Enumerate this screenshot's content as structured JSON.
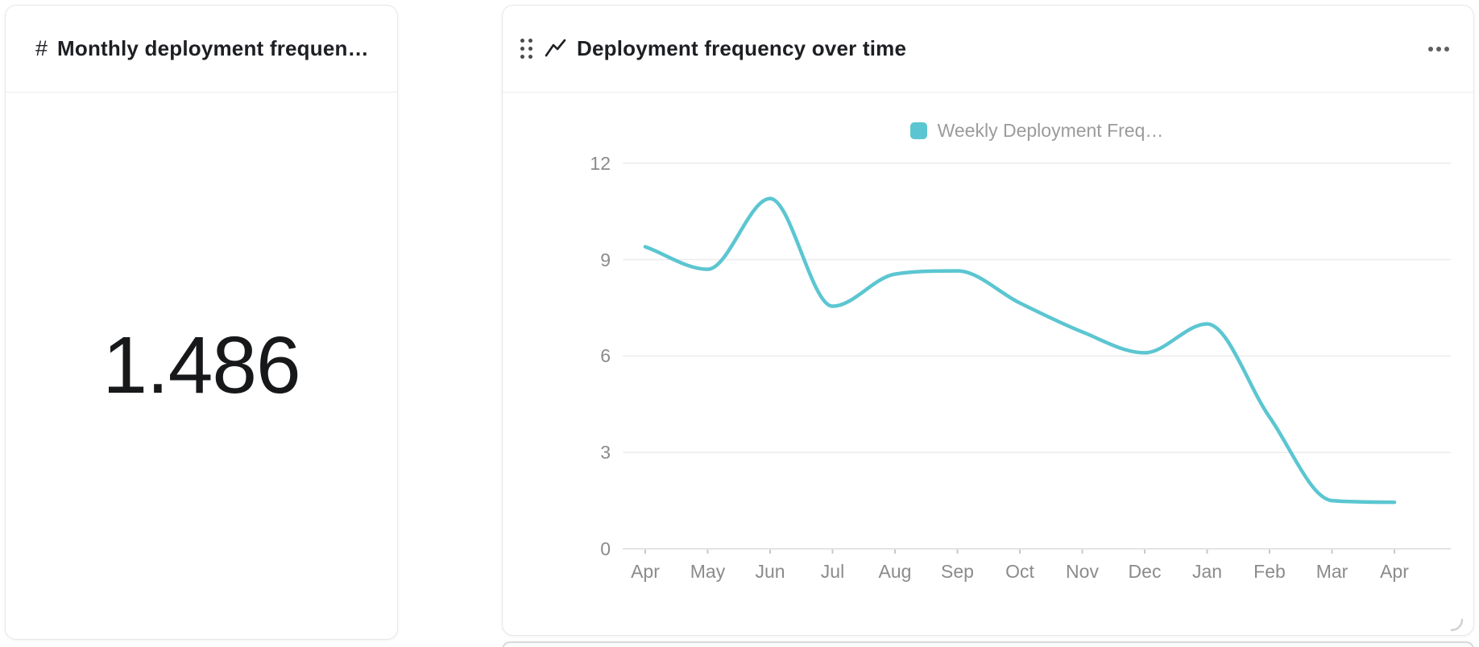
{
  "left_card": {
    "hash_glyph": "#",
    "title": "Monthly deployment frequen…",
    "value": "1.486"
  },
  "right_card": {
    "title": "Deployment frequency over time",
    "menu_icon": "ellipsis",
    "drag_icon": "drag-handle",
    "type_icon": "line-chart"
  },
  "chart_data": {
    "type": "line",
    "smooth": true,
    "title": "Deployment frequency over time",
    "categories": [
      "Apr",
      "May",
      "Jun",
      "Jul",
      "Aug",
      "Sep",
      "Oct",
      "Nov",
      "Dec",
      "Jan",
      "Feb",
      "Mar",
      "Apr"
    ],
    "series": [
      {
        "name": "Weekly Deployment Freq…",
        "color": "#5bc6d1",
        "values": [
          9.4,
          8.7,
          10.9,
          7.55,
          8.55,
          8.65,
          7.65,
          6.75,
          6.1,
          7.0,
          4.1,
          1.5,
          1.45
        ]
      }
    ],
    "xlabel": "",
    "ylabel": "",
    "ylim": [
      0,
      12
    ],
    "yticks": [
      0,
      3,
      6,
      9,
      12
    ],
    "grid": "horizontal",
    "legend_position": "top"
  },
  "colors": {
    "line": "#5bc6d1",
    "grid_line": "#ececec",
    "axis_line": "#dcdcdc",
    "axis_text": "#8b8b8b",
    "legend_text": "#9b9b9b",
    "title_text": "#1d1f23"
  }
}
